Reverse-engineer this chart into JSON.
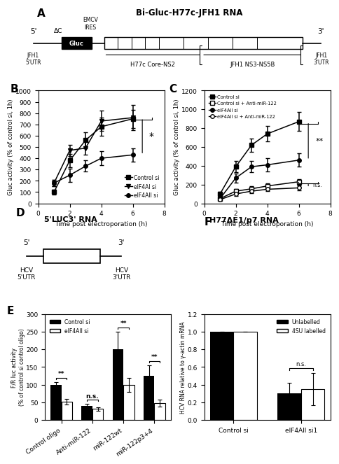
{
  "panel_A": {
    "title": "Bi-Gluc-H77c-JFH1 RNA",
    "dc_label": "ΔC",
    "emcv_label": "EMCV\nIRES",
    "gluc_label": "Gluc",
    "h77c_label": "H77c Core-NS2",
    "jfh1_label": "JFH1 NS3-NS5B",
    "jfh1_5utr": "JFH1\n5'UTR",
    "jfh1_3utr": "JFH1\n3'UTR"
  },
  "panel_B": {
    "label": "B",
    "xlabel": "Time post electroporation (h)",
    "ylabel": "Gluc activity (% of control si, 1h)",
    "ylim": [
      0,
      1000
    ],
    "yticks": [
      0,
      100,
      200,
      300,
      400,
      500,
      600,
      700,
      800,
      900,
      1000
    ],
    "xlim": [
      0,
      8
    ],
    "xticks": [
      0,
      2,
      4,
      6,
      8
    ],
    "time_points": [
      1,
      2,
      3,
      4,
      6
    ],
    "control_si": [
      100,
      380,
      560,
      680,
      750
    ],
    "control_si_err": [
      20,
      60,
      70,
      80,
      80
    ],
    "eif4ai_si": [
      180,
      470,
      490,
      730,
      760
    ],
    "eif4ai_si_err": [
      30,
      50,
      60,
      90,
      110
    ],
    "eif4aii_si": [
      180,
      250,
      330,
      400,
      430
    ],
    "eif4aii_si_err": [
      30,
      60,
      50,
      60,
      60
    ],
    "legend": [
      "Control si",
      "eIF4AI si",
      "eIF4AII si"
    ],
    "significance": "*"
  },
  "panel_C": {
    "label": "C",
    "xlabel": "Time post electroporation (h)",
    "ylabel": "Gluc activity (% of control si, 1h)",
    "ylim": [
      0,
      1200
    ],
    "yticks": [
      0,
      200,
      400,
      600,
      800,
      1000,
      1200
    ],
    "xlim": [
      0,
      8
    ],
    "xticks": [
      0,
      2,
      4,
      6,
      8
    ],
    "time_points": [
      1,
      2,
      3,
      4,
      6
    ],
    "control_si": [
      100,
      390,
      620,
      740,
      870
    ],
    "control_si_err": [
      20,
      60,
      70,
      80,
      100
    ],
    "control_si_antimir": [
      50,
      130,
      155,
      185,
      230
    ],
    "control_si_antimir_err": [
      15,
      20,
      25,
      25,
      30
    ],
    "eif4aii_si": [
      50,
      270,
      390,
      410,
      460
    ],
    "eif4aii_si_err": [
      15,
      50,
      60,
      70,
      70
    ],
    "eif4aii_si_antimir": [
      40,
      100,
      130,
      150,
      165
    ],
    "eif4aii_si_antimir_err": [
      10,
      20,
      20,
      20,
      25
    ],
    "legend": [
      "Control si",
      "Control si + Anti-miR-122",
      "eIF4AII si",
      "eIF4AII si + Anti-miR-122"
    ],
    "significance": "**",
    "ns_label": "n.s."
  },
  "panel_D": {
    "label": "D",
    "title": "5'LUC3' RNA",
    "hcv_5utr": "HCV\n5'UTR",
    "hcv_3utr": "HCV\n3'UTR"
  },
  "panel_E": {
    "label": "E",
    "ylabel": "F/R luc activity\n(% of control si control oligo)",
    "ylim": [
      0,
      300
    ],
    "yticks": [
      0,
      50,
      100,
      150,
      200,
      250,
      300
    ],
    "categories": [
      "Control oligo",
      "Anti-miR-122",
      "miR-122wt",
      "miR-122p3+4"
    ],
    "control_si": [
      100,
      40,
      200,
      125
    ],
    "control_si_err": [
      8,
      6,
      50,
      30
    ],
    "eif4aii_si": [
      52,
      32,
      100,
      48
    ],
    "eif4aii_si_err": [
      8,
      5,
      20,
      10
    ],
    "legend": [
      "Control si",
      "eIF4AII si"
    ],
    "significance": [
      "**",
      "n.s.",
      "**",
      "**"
    ]
  },
  "panel_F": {
    "label": "F",
    "title": "H77ΔE1/p7 RNA",
    "ylabel": "HCV RNA relative to γ-actin mRNA",
    "ylim": [
      0,
      1.2
    ],
    "yticks": [
      0.0,
      0.2,
      0.4,
      0.6,
      0.8,
      1.0,
      1.2
    ],
    "categories": [
      "Control si",
      "eIF4AII si1"
    ],
    "unlabelled": [
      1.0,
      0.3
    ],
    "unlabelled_err": [
      0.0,
      0.12
    ],
    "labelled_4su": [
      1.0,
      0.35
    ],
    "labelled_4su_err": [
      0.0,
      0.18
    ],
    "legend": [
      "Unlabelled",
      "4SU labelled"
    ],
    "ns_label": "n.s."
  }
}
